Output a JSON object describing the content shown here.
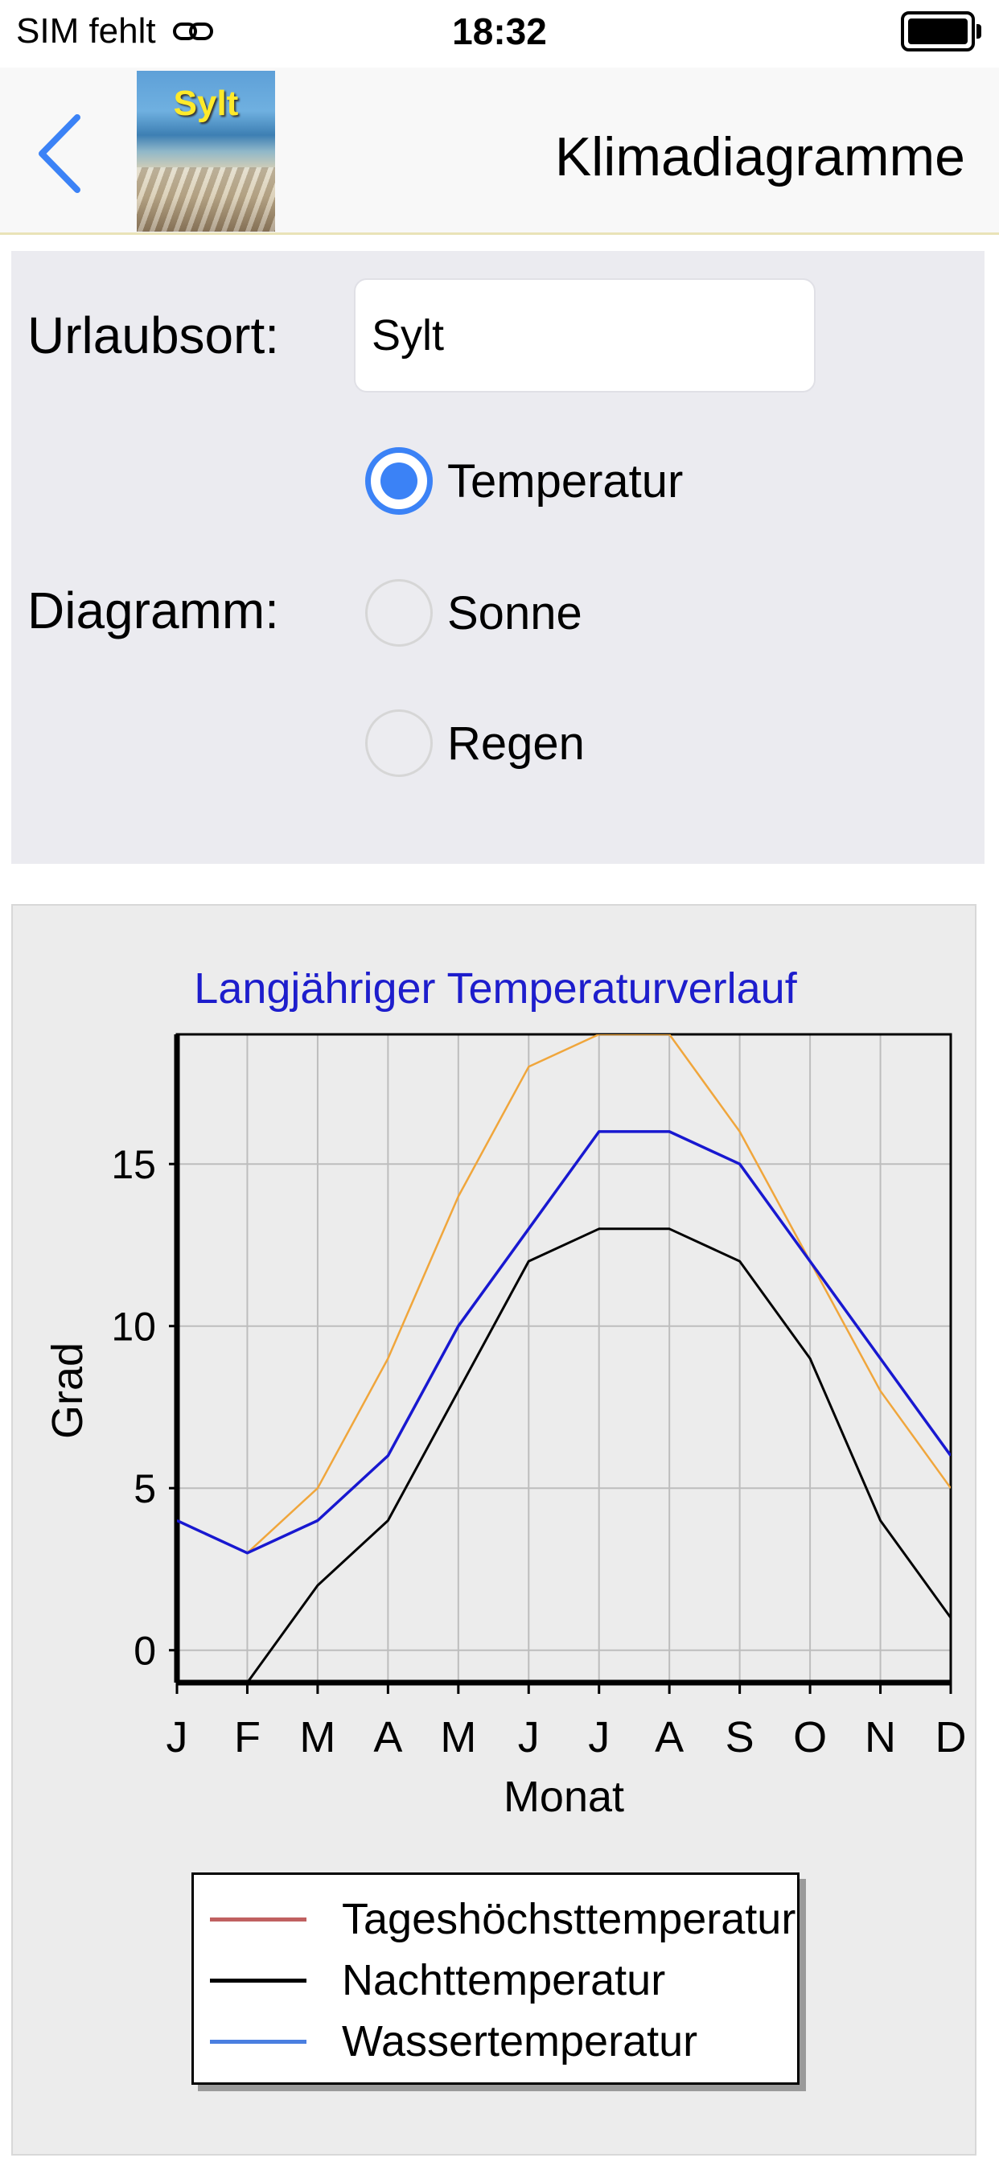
{
  "status": {
    "carrier": "SIM fehlt",
    "time": "18:32"
  },
  "nav": {
    "thumbnail_label": "Sylt",
    "title": "Klimadiagramme"
  },
  "form": {
    "location_label": "Urlaubsort:",
    "location_value": "Sylt",
    "diagram_label": "Diagramm:",
    "options": [
      {
        "label": "Temperatur",
        "checked": true
      },
      {
        "label": "Sonne",
        "checked": false
      },
      {
        "label": "Regen",
        "checked": false
      }
    ]
  },
  "colors": {
    "accent": "#3b82f6",
    "title": "#1d1dcc",
    "series_day": "#f0a63c",
    "series_night": "#000000",
    "series_water": "#1818d0"
  },
  "chart_data": {
    "type": "line",
    "title": "Langjähriger Temperaturverlauf",
    "xlabel": "Monat",
    "ylabel": "Grad",
    "categories": [
      "J",
      "F",
      "M",
      "A",
      "M",
      "J",
      "J",
      "A",
      "S",
      "O",
      "N",
      "D"
    ],
    "yticks": [
      "0",
      "5",
      "10",
      "15"
    ],
    "ylim": [
      -1,
      19
    ],
    "grid": true,
    "series": [
      {
        "name": "Tageshöchsttemperatur",
        "legend_color": "#c06060",
        "values": [
          4,
          3,
          5,
          9,
          14,
          18,
          19,
          19,
          16,
          12,
          8,
          5
        ]
      },
      {
        "name": "Nachttemperatur",
        "legend_color": "#000000",
        "values": [
          -1,
          -1,
          2,
          4,
          8,
          12,
          13,
          13,
          12,
          9,
          4,
          1
        ]
      },
      {
        "name": "Wassertemperatur",
        "legend_color": "#4a7fe0",
        "values": [
          4,
          3,
          4,
          6,
          10,
          13,
          16,
          16,
          15,
          12,
          9,
          6
        ]
      }
    ],
    "legend_position": "bottom"
  }
}
